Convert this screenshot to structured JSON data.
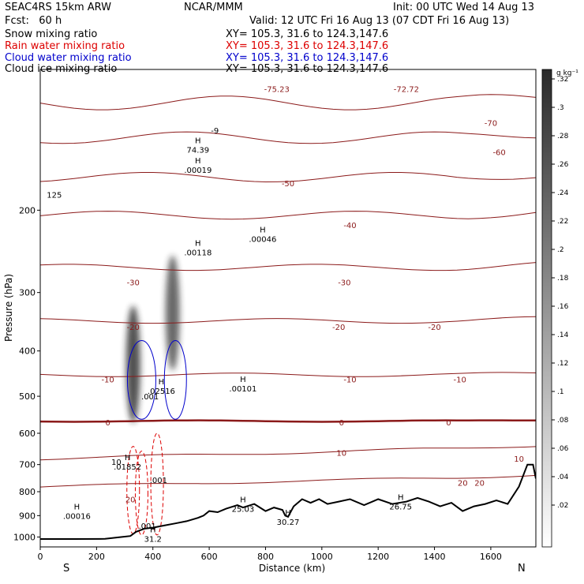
{
  "header": {
    "model": "SEAC4RS 15km ARW",
    "center": "NCAR/MMM",
    "init": "Init: 00 UTC Wed 14 Aug 13",
    "fcst": "Fcst:   60 h",
    "valid": "Valid: 12 UTC Fri 16 Aug 13 (07 CDT Fri 16 Aug 13)"
  },
  "fields": [
    {
      "name": "Snow mixing ratio",
      "xy": "XY= 105.3, 31.6 to 124.3,147.6",
      "color": "#000000"
    },
    {
      "name": "Rain water mixing ratio",
      "xy": "XY= 105.3, 31.6 to 124.3,147.6",
      "color": "#dd0000"
    },
    {
      "name": "Cloud water mixing ratio",
      "xy": "XY= 105.3, 31.6 to 124.3,147.6",
      "color": "#0000cc"
    },
    {
      "name": "Cloud ice mixing ratio",
      "xy": "XY= 105.3, 31.6 to 124.3,147.6",
      "color": "#000000"
    }
  ],
  "colorbar": {
    "unit": "g kg⁻¹",
    "ticks": [
      ".32",
      ".3",
      ".28",
      ".26",
      ".24",
      ".22",
      ".2",
      ".18",
      ".16",
      ".14",
      ".12",
      ".1",
      ".08",
      ".06",
      ".04",
      ".02"
    ]
  },
  "chart_data": {
    "type": "contour",
    "xlabel": "Distance (km)",
    "ylabel": "Pressure (hPa)",
    "xlim": [
      0,
      1760
    ],
    "ylim": [
      1050,
      100
    ],
    "y_scale": "log",
    "x_ticks": [
      0,
      200,
      400,
      600,
      800,
      1000,
      1200,
      1400,
      1600
    ],
    "y_ticks": [
      200,
      300,
      400,
      500,
      600,
      700,
      800,
      900,
      1000
    ],
    "x_end_labels": {
      "left": "S",
      "right": "N"
    },
    "temperature_isotherms_C": [
      -70,
      -60,
      -50,
      -40,
      -30,
      -20,
      -10,
      0,
      10,
      20
    ],
    "temperature_labels": [
      {
        "text": "-75.23",
        "x": 840,
        "p": 110
      },
      {
        "text": "-72.72",
        "x": 1300,
        "p": 110
      },
      {
        "text": "-70",
        "x": 1600,
        "p": 130
      },
      {
        "text": "-60",
        "x": 1630,
        "p": 150
      },
      {
        "text": "-50",
        "x": 880,
        "p": 175
      },
      {
        "text": "-40",
        "x": 1100,
        "p": 215
      },
      {
        "text": "-30",
        "x": 330,
        "p": 285
      },
      {
        "text": "-30",
        "x": 1080,
        "p": 285
      },
      {
        "text": "-20",
        "x": 330,
        "p": 355
      },
      {
        "text": "-20",
        "x": 1060,
        "p": 355
      },
      {
        "text": "-20",
        "x": 1400,
        "p": 355
      },
      {
        "text": "-10",
        "x": 240,
        "p": 460
      },
      {
        "text": "-10",
        "x": 1100,
        "p": 460
      },
      {
        "text": "-10",
        "x": 1490,
        "p": 460
      },
      {
        "text": "0",
        "x": 240,
        "p": 568
      },
      {
        "text": "0",
        "x": 1070,
        "p": 568
      },
      {
        "text": "0",
        "x": 1450,
        "p": 568
      },
      {
        "text": "10",
        "x": 1070,
        "p": 660
      },
      {
        "text": "10",
        "x": 1700,
        "p": 680
      },
      {
        "text": "20",
        "x": 320,
        "p": 830
      },
      {
        "text": "20",
        "x": 1500,
        "p": 765
      },
      {
        "text": "20",
        "x": 1560,
        "p": 765
      }
    ],
    "extrema": [
      {
        "mark": "H",
        "value": "74.39",
        "x": 560,
        "p": 145
      },
      {
        "mark": "H",
        "value": ".00019",
        "x": 560,
        "p": 160
      },
      {
        "mark": "H",
        "value": ".00046",
        "x": 790,
        "p": 225
      },
      {
        "mark": "H",
        "value": ".00118",
        "x": 560,
        "p": 240
      },
      {
        "mark": "H",
        "value": ".02516",
        "x": 430,
        "p": 475
      },
      {
        "mark": "H",
        "value": ".00101",
        "x": 720,
        "p": 470
      },
      {
        "mark": "H",
        "value": ".01852",
        "x": 310,
        "p": 690
      },
      {
        "mark": "H",
        "value": ".00016",
        "x": 130,
        "p": 880
      },
      {
        "mark": "H",
        "value": "25.03",
        "x": 720,
        "p": 850
      },
      {
        "mark": "H",
        "value": "30.27",
        "x": 880,
        "p": 905
      },
      {
        "mark": "H",
        "value": "26.75",
        "x": 1280,
        "p": 840
      },
      {
        "mark": "H",
        "value": "31.2",
        "x": 400,
        "p": 985
      }
    ],
    "other_labels": [
      {
        "text": "125",
        "x": 50,
        "p": 185
      },
      {
        "text": ".001",
        "x": 390,
        "p": 500
      },
      {
        "text": ".001",
        "x": 420,
        "p": 755
      },
      {
        "text": ".001",
        "x": 380,
        "p": 945
      },
      {
        "text": "10",
        "x": 270,
        "p": 690
      },
      {
        "text": "-9",
        "x": 620,
        "p": 135
      }
    ],
    "terrain_profile": {
      "x": [
        0,
        120,
        230,
        290,
        320,
        340,
        370,
        400,
        440,
        480,
        520,
        560,
        580,
        600,
        630,
        660,
        700,
        720,
        760,
        800,
        830,
        860,
        870,
        880,
        900,
        930,
        960,
        990,
        1020,
        1060,
        1100,
        1150,
        1200,
        1250,
        1300,
        1340,
        1380,
        1420,
        1460,
        1500,
        1540,
        1580,
        1620,
        1660,
        1700,
        1730,
        1750,
        1760
      ],
      "p": [
        1010,
        1010,
        1009,
        1000,
        995,
        975,
        960,
        955,
        945,
        935,
        925,
        910,
        900,
        880,
        885,
        870,
        855,
        865,
        850,
        880,
        865,
        875,
        900,
        905,
        860,
        830,
        845,
        830,
        850,
        840,
        830,
        855,
        830,
        850,
        840,
        825,
        840,
        860,
        845,
        880,
        860,
        850,
        835,
        850,
        780,
        700,
        700,
        750
      ]
    },
    "shaded_field": {
      "name": "Cloud ice mixing ratio",
      "plumes": [
        {
          "x": 330,
          "p_top": 320,
          "p_bottom": 570,
          "peak": 0.3
        },
        {
          "x": 470,
          "p_top": 250,
          "p_bottom": 440,
          "peak": 0.26
        }
      ]
    }
  }
}
